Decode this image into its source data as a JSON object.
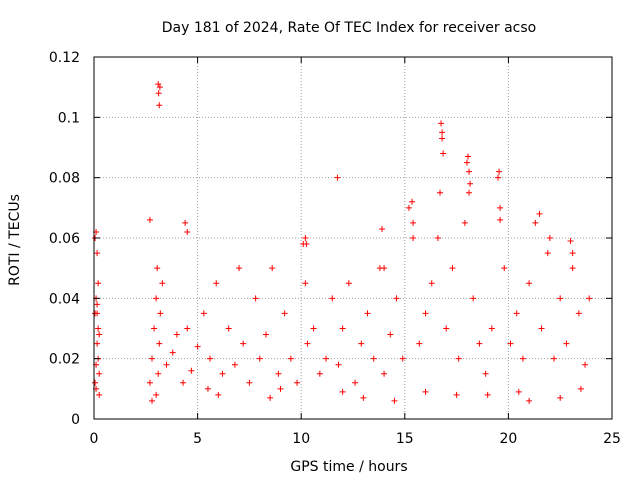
{
  "chart_data": {
    "type": "scatter",
    "title": "Day 181 of 2024, Rate Of TEC Index for receiver acso",
    "xlabel": "GPS time / hours",
    "ylabel": "ROTI / TECUs",
    "xlim": [
      0,
      25
    ],
    "ylim": [
      0,
      0.12
    ],
    "xticks": [
      0,
      5,
      10,
      15,
      20,
      25
    ],
    "xtick_labels": [
      "0",
      "5",
      "10",
      "15",
      "20",
      "25"
    ],
    "yticks": [
      0,
      0.02,
      0.04,
      0.06,
      0.08,
      0.1,
      0.12
    ],
    "ytick_labels": [
      "0",
      "0.02",
      "0.04",
      "0.06",
      "0.08",
      "0.1",
      "0.12"
    ],
    "grid": true,
    "marker": "+",
    "marker_color": "#ff0000",
    "series": [
      {
        "name": "ROTI",
        "x": [
          0.05,
          0.1,
          0.15,
          0.2,
          0.25,
          0.1,
          0.15,
          0.2,
          0.05,
          0.25,
          0.1,
          0.2,
          0.15,
          0.05,
          0.25,
          2.7,
          2.8,
          2.9,
          3.0,
          3.05,
          3.1,
          3.15,
          3.2,
          3.3,
          3.5,
          3.8,
          4.0,
          4.3,
          4.5,
          4.7,
          5.0,
          5.3,
          5.6,
          5.9,
          6.2,
          6.5,
          6.8,
          7.0,
          7.2,
          7.5,
          7.8,
          8.0,
          8.3,
          8.6,
          8.9,
          9.2,
          9.5,
          9.8,
          10.1,
          10.2,
          10.3,
          10.6,
          10.9,
          11.2,
          11.5,
          11.8,
          12.0,
          12.3,
          12.6,
          12.9,
          13.2,
          13.5,
          13.8,
          14.0,
          14.3,
          14.6,
          14.9,
          15.2,
          15.4,
          15.7,
          16.0,
          16.3,
          16.6,
          16.7,
          16.8,
          17.0,
          17.3,
          17.6,
          17.9,
          18.0,
          18.1,
          18.3,
          18.6,
          18.9,
          19.2,
          19.5,
          19.6,
          19.8,
          20.1,
          20.4,
          20.7,
          21.0,
          21.3,
          21.6,
          21.9,
          22.2,
          22.5,
          22.8,
          23.1,
          23.4,
          23.7,
          23.9,
          3.1,
          3.12,
          3.15,
          3.18,
          16.75,
          16.8,
          16.85,
          18.05,
          18.1,
          18.15,
          19.55,
          19.6,
          11.75,
          10.2,
          10.25,
          15.35,
          15.4,
          0.1,
          0.15,
          2.7,
          4.4,
          4.5,
          13.9,
          14.0,
          21.5,
          22.0,
          23.0,
          23.1,
          3.0,
          5.5,
          8.5,
          12.0,
          14.5,
          17.5,
          20.5,
          22.5,
          2.8,
          6.0,
          9.0,
          13.0,
          16.0,
          19.0,
          21.0,
          23.5
        ],
        "y": [
          0.012,
          0.018,
          0.025,
          0.03,
          0.015,
          0.062,
          0.055,
          0.045,
          0.035,
          0.008,
          0.01,
          0.02,
          0.038,
          0.06,
          0.028,
          0.012,
          0.02,
          0.03,
          0.04,
          0.05,
          0.015,
          0.025,
          0.035,
          0.045,
          0.018,
          0.022,
          0.028,
          0.012,
          0.03,
          0.016,
          0.024,
          0.035,
          0.02,
          0.045,
          0.015,
          0.03,
          0.018,
          0.05,
          0.025,
          0.012,
          0.04,
          0.02,
          0.028,
          0.05,
          0.015,
          0.035,
          0.02,
          0.012,
          0.058,
          0.045,
          0.025,
          0.03,
          0.015,
          0.02,
          0.04,
          0.018,
          0.03,
          0.045,
          0.012,
          0.025,
          0.035,
          0.02,
          0.05,
          0.015,
          0.028,
          0.04,
          0.02,
          0.07,
          0.06,
          0.025,
          0.035,
          0.045,
          0.06,
          0.075,
          0.095,
          0.03,
          0.05,
          0.02,
          0.065,
          0.085,
          0.075,
          0.04,
          0.025,
          0.015,
          0.03,
          0.08,
          0.07,
          0.05,
          0.025,
          0.035,
          0.02,
          0.045,
          0.065,
          0.03,
          0.055,
          0.02,
          0.04,
          0.025,
          0.05,
          0.035,
          0.018,
          0.04,
          0.111,
          0.108,
          0.104,
          0.11,
          0.098,
          0.093,
          0.088,
          0.087,
          0.082,
          0.078,
          0.082,
          0.066,
          0.08,
          0.06,
          0.058,
          0.072,
          0.065,
          0.04,
          0.035,
          0.066,
          0.065,
          0.062,
          0.063,
          0.05,
          0.068,
          0.06,
          0.059,
          0.055,
          0.008,
          0.01,
          0.007,
          0.009,
          0.006,
          0.008,
          0.009,
          0.007,
          0.006,
          0.008,
          0.01,
          0.007,
          0.009,
          0.008,
          0.006,
          0.01
        ]
      }
    ]
  }
}
